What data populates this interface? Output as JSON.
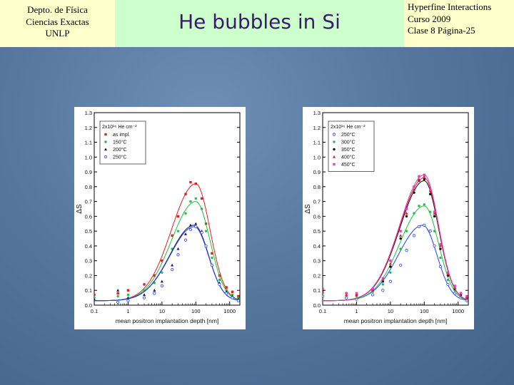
{
  "header": {
    "left_lines": [
      "Depto. de Física",
      "Ciencias Exactas",
      "UNLP"
    ],
    "title": "He bubbles in Si",
    "right_lines": [
      "Hyperfine Interactions",
      "Curso 2009",
      "Clase 8  Página-25"
    ]
  },
  "chart_data": [
    {
      "type": "scatter",
      "xlabel": "mean positron implantation depth [nm]",
      "ylabel": "ΔS",
      "x_scale": "log",
      "xlim": [
        0.1,
        2000
      ],
      "ylim": [
        0.0,
        1.3
      ],
      "x_ticks": [
        0.1,
        1,
        10,
        100,
        1000
      ],
      "x_tick_labels": [
        "0.1",
        "1",
        "10",
        "100",
        "1000"
      ],
      "y_ticks": [
        0.0,
        0.1,
        0.2,
        0.3,
        0.4,
        0.5,
        0.6,
        0.7,
        0.8,
        0.9,
        1.0,
        1.1,
        1.2,
        1.3
      ],
      "y_tick_labels": [
        "0.0",
        "0.1",
        "0.2",
        "0.3",
        "0.4",
        "0.5",
        "0.6",
        "0.7",
        "0.8",
        "0.9",
        "1.0",
        "1.1",
        "1.2",
        "1.3"
      ],
      "legend": {
        "title": "2x10¹⁶ He cm⁻²",
        "placement": "top-left"
      },
      "series": [
        {
          "name": "as impl.",
          "color": "#e02020",
          "marker": "square",
          "x": [
            0.1,
            0.5,
            1,
            3,
            6,
            10,
            20,
            30,
            50,
            70,
            100,
            150,
            200,
            300,
            500,
            800,
            1200,
            1800
          ],
          "y": [
            0.07,
            0.08,
            0.1,
            0.14,
            0.2,
            0.3,
            0.47,
            0.6,
            0.75,
            0.83,
            0.82,
            0.72,
            0.55,
            0.35,
            0.2,
            0.12,
            0.09,
            0.06
          ],
          "fit_peak": [
            100,
            0.82
          ]
        },
        {
          "name": "150°C",
          "color": "#20c040",
          "marker": "circle",
          "x": [
            0.1,
            0.5,
            1,
            3,
            6,
            10,
            20,
            30,
            50,
            70,
            100,
            150,
            200,
            300,
            500,
            800,
            1200,
            1800
          ],
          "y": [
            0.05,
            0.06,
            0.07,
            0.1,
            0.15,
            0.22,
            0.38,
            0.5,
            0.62,
            0.7,
            0.72,
            0.65,
            0.5,
            0.32,
            0.17,
            0.1,
            0.07,
            0.05
          ],
          "fit_peak": [
            100,
            0.7
          ]
        },
        {
          "name": "200°C",
          "color": "#1a1a50",
          "marker": "triangle",
          "x": [
            0.1,
            0.5,
            1,
            3,
            6,
            10,
            20,
            30,
            50,
            70,
            100,
            150,
            200,
            300,
            500,
            800,
            1200,
            1800
          ],
          "y": [
            0.04,
            0.1,
            0.05,
            0.07,
            0.1,
            0.16,
            0.27,
            0.38,
            0.48,
            0.54,
            0.55,
            0.5,
            0.4,
            0.27,
            0.15,
            0.09,
            0.06,
            0.04
          ],
          "fit_peak": [
            90,
            0.54
          ]
        },
        {
          "name": "250°C",
          "color": "#2040ff",
          "marker": "open-circle",
          "x": [
            0.5,
            1,
            3,
            6,
            10,
            20,
            30,
            50,
            70,
            100,
            150,
            200,
            300,
            500,
            800,
            1200,
            1800
          ],
          "y": [
            0.02,
            0.03,
            0.05,
            0.08,
            0.13,
            0.24,
            0.34,
            0.44,
            0.51,
            0.53,
            0.49,
            0.4,
            0.27,
            0.14,
            0.08,
            0.05,
            0.03
          ],
          "fit_peak": [
            90,
            0.53
          ]
        }
      ]
    },
    {
      "type": "scatter",
      "xlabel": "mean positron implantation depth [nm]",
      "ylabel": "ΔS",
      "x_scale": "log",
      "xlim": [
        0.1,
        2000
      ],
      "ylim": [
        0.0,
        1.3
      ],
      "x_ticks": [
        0.1,
        1,
        10,
        100,
        1000
      ],
      "x_tick_labels": [
        "0.1",
        "1",
        "10",
        "100",
        "1000"
      ],
      "y_ticks": [
        0.0,
        0.1,
        0.2,
        0.3,
        0.4,
        0.5,
        0.6,
        0.7,
        0.8,
        0.9,
        1.0,
        1.1,
        1.2,
        1.3
      ],
      "y_tick_labels": [
        "0.0",
        "0.1",
        "0.2",
        "0.3",
        "0.4",
        "0.5",
        "0.6",
        "0.7",
        "0.8",
        "0.9",
        "1.0",
        "1.1",
        "1.2",
        "1.3"
      ],
      "legend": {
        "title": "2x10¹⁶ He cm⁻²",
        "placement": "top-left"
      },
      "series": [
        {
          "name": "250°C",
          "color": "#2040ff",
          "marker": "open-circle",
          "x": [
            0.1,
            0.5,
            1,
            3,
            6,
            10,
            20,
            30,
            50,
            70,
            100,
            150,
            200,
            300,
            500,
            800,
            1200,
            1800
          ],
          "y": [
            0.06,
            0.05,
            0.04,
            0.07,
            0.1,
            0.16,
            0.27,
            0.37,
            0.47,
            0.53,
            0.54,
            0.5,
            0.4,
            0.26,
            0.14,
            0.08,
            0.05,
            0.03
          ],
          "fit_peak": [
            90,
            0.54
          ]
        },
        {
          "name": "300°C",
          "color": "#20c040",
          "marker": "circle",
          "x": [
            0.1,
            0.5,
            1,
            3,
            6,
            10,
            20,
            30,
            50,
            70,
            100,
            150,
            200,
            300,
            500,
            800,
            1200,
            1800
          ],
          "y": [
            0.08,
            0.06,
            0.06,
            0.09,
            0.14,
            0.22,
            0.38,
            0.5,
            0.62,
            0.67,
            0.68,
            0.63,
            0.5,
            0.32,
            0.17,
            0.1,
            0.06,
            0.04
          ],
          "fit_peak": [
            100,
            0.67
          ]
        },
        {
          "name": "350°C",
          "color": "#101010",
          "marker": "circle",
          "x": [
            0.1,
            0.5,
            1,
            3,
            6,
            10,
            20,
            30,
            50,
            70,
            100,
            150,
            200,
            300,
            500,
            800,
            1200,
            1800
          ],
          "y": [
            0.1,
            0.08,
            0.07,
            0.1,
            0.16,
            0.26,
            0.45,
            0.6,
            0.76,
            0.84,
            0.85,
            0.75,
            0.6,
            0.38,
            0.2,
            0.11,
            0.07,
            0.05
          ],
          "fit_peak": [
            100,
            0.84
          ]
        },
        {
          "name": "400°C",
          "color": "#e02020",
          "marker": "triangle",
          "x": [
            0.1,
            0.5,
            1,
            3,
            6,
            10,
            20,
            30,
            50,
            70,
            100,
            150,
            200,
            300,
            500,
            800,
            1200,
            1800
          ],
          "y": [
            0.09,
            0.07,
            0.07,
            0.1,
            0.17,
            0.28,
            0.47,
            0.62,
            0.78,
            0.85,
            0.87,
            0.77,
            0.62,
            0.4,
            0.21,
            0.12,
            0.08,
            0.05
          ],
          "fit_peak": [
            100,
            0.86
          ]
        },
        {
          "name": "450°C",
          "color": "#e040c0",
          "marker": "square",
          "x": [
            0.1,
            0.5,
            1,
            3,
            6,
            10,
            20,
            30,
            50,
            70,
            100,
            150,
            200,
            300,
            500,
            800,
            1200,
            1800
          ],
          "y": [
            0.11,
            0.08,
            0.08,
            0.11,
            0.18,
            0.3,
            0.5,
            0.65,
            0.8,
            0.87,
            0.88,
            0.78,
            0.63,
            0.41,
            0.22,
            0.13,
            0.08,
            0.06
          ],
          "fit_peak": [
            100,
            0.88
          ]
        }
      ]
    }
  ]
}
